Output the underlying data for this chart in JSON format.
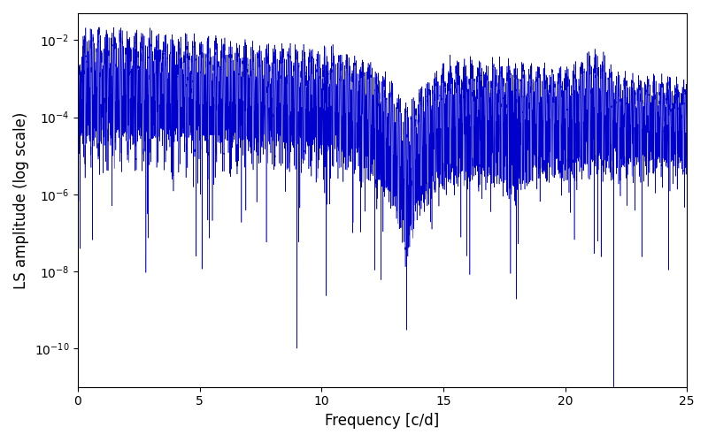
{
  "xlabel": "Frequency [c/d]",
  "ylabel": "LS amplitude (log scale)",
  "line_color": "#0000cc",
  "xlim": [
    0,
    25
  ],
  "ylim": [
    1e-11,
    0.05
  ],
  "figsize": [
    8.0,
    5.0
  ],
  "dpi": 100,
  "seed": 42,
  "n_points": 12000,
  "freq_max": 25.0,
  "yticks": [
    1e-10,
    1e-08,
    1e-06,
    0.0001,
    0.01
  ],
  "xticks": [
    0,
    5,
    10,
    15,
    20,
    25
  ]
}
